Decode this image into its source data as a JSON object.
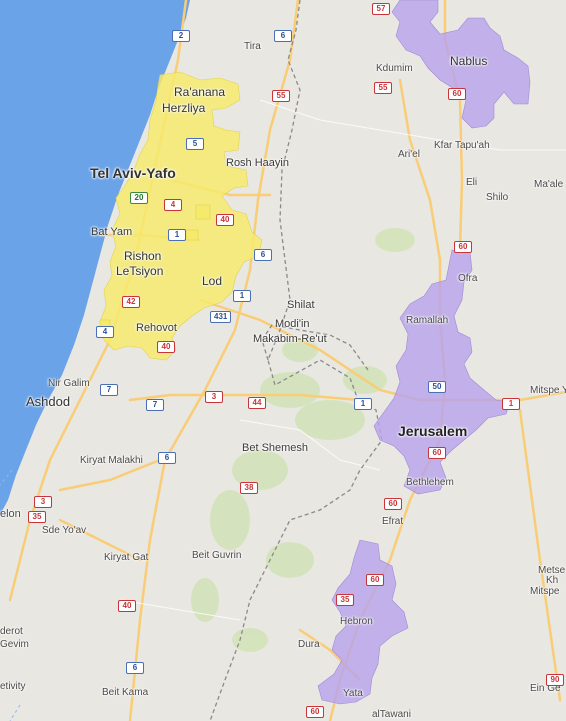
{
  "map": {
    "colors": {
      "sea": "#6aa3e8",
      "land": "#e9e7e2",
      "green_area": "#cfe3b4",
      "region_tel_aviv": "#f6ea6a",
      "region_jerusalem": "#b8a3ea",
      "road_major": "#f9cc76",
      "border_line": "#8a8a8a"
    },
    "labels": {
      "tel_aviv": "Tel Aviv-Yafo",
      "jerusalem": "Jerusalem",
      "raanana": "Ra'anana",
      "herzliya": "Herzliya",
      "rosh_haayin": "Rosh Haayin",
      "bat_yam": "Bat Yam",
      "rishon_1": "Rishon",
      "rishon_2": "LeTsiyon",
      "lod": "Lod",
      "rehovot": "Rehovot",
      "ashdod": "Ashdod",
      "nir_galim": "Nir Galim",
      "kiryat_malakhi": "Kiryat Malakhi",
      "bet_shemesh": "Bet Shemesh",
      "modiin": "Modi'in",
      "makabim": "Makabim-Re'ut",
      "shilat": "Shilat",
      "tira": "Tira",
      "kdumim": "Kdumim",
      "nablus": "Nablus",
      "kfar_tapuah": "Kfar Tapu'ah",
      "ariel": "Ari'el",
      "eli": "Eli",
      "shilo": "Shilo",
      "maale": "Ma'ale",
      "ofra": "Ofra",
      "ramallah": "Ramallah",
      "mitspe": "Mitspe Y",
      "bethlehem": "Bethlehem",
      "efrat": "Efrat",
      "hebron": "Hebron",
      "dura": "Dura",
      "yata": "Yata",
      "al_tawani": "alTawani",
      "beit_guvrin": "Beit Guvrin",
      "kiryat_gat": "Kiryat Gat",
      "sde_yoav": "Sde Yo'av",
      "elon": "elon",
      "derot": "derot",
      "gevim": "Gevim",
      "beit_kama": "Beit Kama",
      "metse": "Metse",
      "kh": "Kh",
      "mitspe2": "Mitspe",
      "ein_ge": "Ein Ge",
      "etivity": "etivity"
    },
    "shields": [
      {
        "id": "s1",
        "text": "2",
        "color": "blue"
      },
      {
        "id": "s2",
        "text": "6",
        "color": "blue"
      },
      {
        "id": "s3",
        "text": "57",
        "color": "red"
      },
      {
        "id": "s4",
        "text": "55",
        "color": "red"
      },
      {
        "id": "s5",
        "text": "55",
        "color": "red"
      },
      {
        "id": "s6",
        "text": "60",
        "color": "red"
      },
      {
        "id": "s7",
        "text": "5",
        "color": "blue"
      },
      {
        "id": "s8",
        "text": "20",
        "color": "green"
      },
      {
        "id": "s9",
        "text": "4",
        "color": "red"
      },
      {
        "id": "s10",
        "text": "40",
        "color": "red"
      },
      {
        "id": "s11",
        "text": "1",
        "color": "blue"
      },
      {
        "id": "s12",
        "text": "6",
        "color": "blue"
      },
      {
        "id": "s13",
        "text": "1",
        "color": "blue"
      },
      {
        "id": "s14",
        "text": "42",
        "color": "red"
      },
      {
        "id": "s15",
        "text": "431",
        "color": "blue"
      },
      {
        "id": "s16",
        "text": "4",
        "color": "blue"
      },
      {
        "id": "s17",
        "text": "40",
        "color": "red"
      },
      {
        "id": "s18",
        "text": "60",
        "color": "red"
      },
      {
        "id": "s19",
        "text": "7",
        "color": "blue"
      },
      {
        "id": "s20",
        "text": "7",
        "color": "blue"
      },
      {
        "id": "s21",
        "text": "3",
        "color": "red"
      },
      {
        "id": "s22",
        "text": "44",
        "color": "red"
      },
      {
        "id": "s23",
        "text": "1",
        "color": "blue"
      },
      {
        "id": "s24",
        "text": "50",
        "color": "blue"
      },
      {
        "id": "s25",
        "text": "1",
        "color": "red"
      },
      {
        "id": "s26",
        "text": "60",
        "color": "red"
      },
      {
        "id": "s27",
        "text": "6",
        "color": "blue"
      },
      {
        "id": "s28",
        "text": "38",
        "color": "red"
      },
      {
        "id": "s29",
        "text": "60",
        "color": "red"
      },
      {
        "id": "s30",
        "text": "3",
        "color": "red"
      },
      {
        "id": "s31",
        "text": "35",
        "color": "red"
      },
      {
        "id": "s32",
        "text": "60",
        "color": "red"
      },
      {
        "id": "s33",
        "text": "35",
        "color": "red"
      },
      {
        "id": "s34",
        "text": "40",
        "color": "red"
      },
      {
        "id": "s35",
        "text": "6",
        "color": "blue"
      },
      {
        "id": "s36",
        "text": "60",
        "color": "red"
      },
      {
        "id": "s37",
        "text": "90",
        "color": "red"
      }
    ]
  }
}
